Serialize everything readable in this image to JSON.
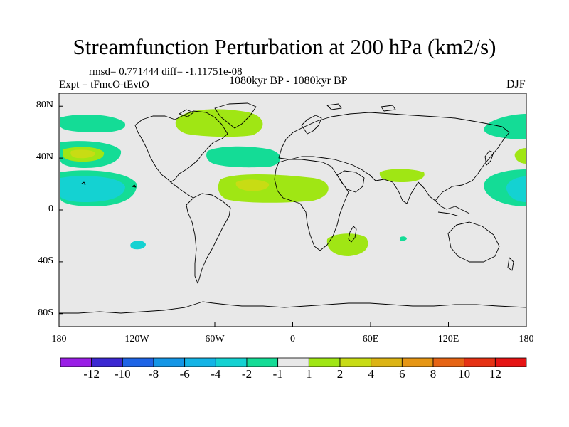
{
  "title": "Streamfunction Perturbation at 200 hPa (km2/s)",
  "stats": "rmsd= 0.771444 diff= -1.11751e-08",
  "experiment": "Expt = tFmcO-tEvtO",
  "period": "1080kyr BP - 1080kyr BP",
  "season": "DJF",
  "map": {
    "lon_range": [
      -180,
      180
    ],
    "lat_range": [
      -90,
      90
    ],
    "x_ticks": [
      "180",
      "120W",
      "60W",
      "0",
      "60E",
      "120E",
      "180"
    ],
    "y_ticks": [
      "80N",
      "40N",
      "0",
      "40S",
      "80S"
    ],
    "background_color": "#e8e8e8",
    "coastline_color": "#000000"
  },
  "colorbar": {
    "labels": [
      "-12",
      "-10",
      "-8",
      "-6",
      "-4",
      "-2",
      "-1",
      "1",
      "2",
      "4",
      "6",
      "8",
      "10",
      "12"
    ],
    "colors": [
      "#9a1ee6",
      "#3c28d2",
      "#1e64e6",
      "#1496e6",
      "#14b4e6",
      "#14d2d2",
      "#14dc96",
      "#e8e8e8",
      "#a0e614",
      "#c8dc14",
      "#dcb414",
      "#e69614",
      "#e66414",
      "#e63214",
      "#e61414"
    ]
  },
  "chart_data": {
    "type": "map-contour",
    "title": "Streamfunction Perturbation at 200 hPa (km2/s)",
    "field": "Streamfunction perturbation at 200 hPa",
    "units": "km2/s",
    "season": "DJF",
    "levels": [
      -12,
      -10,
      -8,
      -6,
      -4,
      -2,
      -1,
      1,
      2,
      4,
      6,
      8,
      10,
      12
    ],
    "features": [
      {
        "lon": -155,
        "lat": 64,
        "value": -1.5
      },
      {
        "lon": -180,
        "lat": 42,
        "value": -2
      },
      {
        "lon": -165,
        "lat": 42,
        "value": 2.5
      },
      {
        "lon": -155,
        "lat": 18,
        "value": -2
      },
      {
        "lon": -160,
        "lat": 16,
        "value": -4
      },
      {
        "lon": -118,
        "lat": -26,
        "value": -2
      },
      {
        "lon": -67,
        "lat": 62,
        "value": 2
      },
      {
        "lon": -93,
        "lat": 70,
        "value": 2
      },
      {
        "lon": -48,
        "lat": 44,
        "value": -1.5
      },
      {
        "lon": -40,
        "lat": 20,
        "value": 2
      },
      {
        "lon": -34,
        "lat": 19,
        "value": 3
      },
      {
        "lon": 0,
        "lat": 18,
        "value": 1.5
      },
      {
        "lon": 55,
        "lat": -27,
        "value": 1.5
      },
      {
        "lon": 72,
        "lat": 27,
        "value": 1.5
      },
      {
        "lon": 85,
        "lat": -22,
        "value": -1.5
      },
      {
        "lon": 164,
        "lat": 64,
        "value": -1.5
      },
      {
        "lon": 175,
        "lat": 42,
        "value": 2
      },
      {
        "lon": 165,
        "lat": 16,
        "value": -3
      }
    ]
  }
}
